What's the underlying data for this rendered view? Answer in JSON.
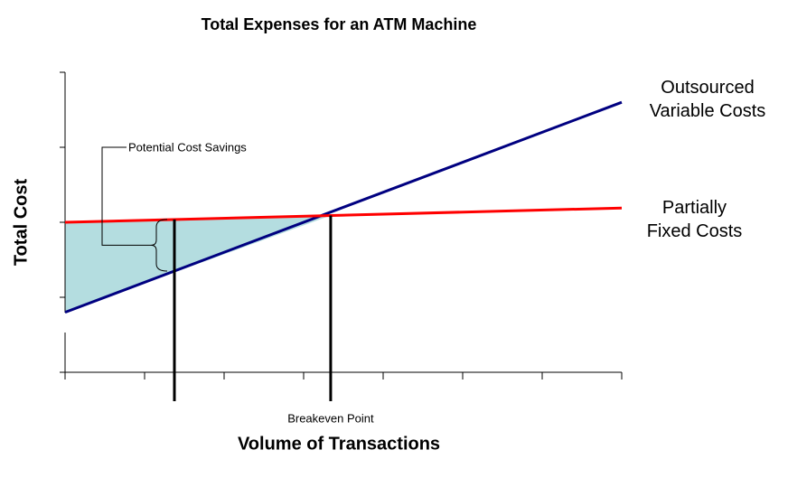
{
  "chart_data": {
    "type": "line",
    "title": "Total Expenses for an ATM Machine",
    "xlabel": "Volume of Transactions",
    "ylabel": "Total Cost",
    "x": [
      0,
      7
    ],
    "xlim": [
      0,
      7
    ],
    "ylim": [
      0,
      4
    ],
    "xticks": [
      0,
      1,
      2,
      3,
      4,
      5,
      6,
      7
    ],
    "yticks": [
      0,
      1,
      2,
      3,
      4
    ],
    "series": [
      {
        "name": "Outsourced Variable Costs",
        "color": "#000080",
        "values": [
          0.8,
          3.6
        ]
      },
      {
        "name": "Partially Fixed Costs",
        "color": "#ff0000",
        "values": [
          2.0,
          2.19
        ]
      }
    ],
    "shade_color": "#b4dde0",
    "annotations": [
      {
        "text": "Potential Cost Savings",
        "x": 1.375
      },
      {
        "text": "Breakeven Point",
        "x": 3.34
      }
    ]
  }
}
